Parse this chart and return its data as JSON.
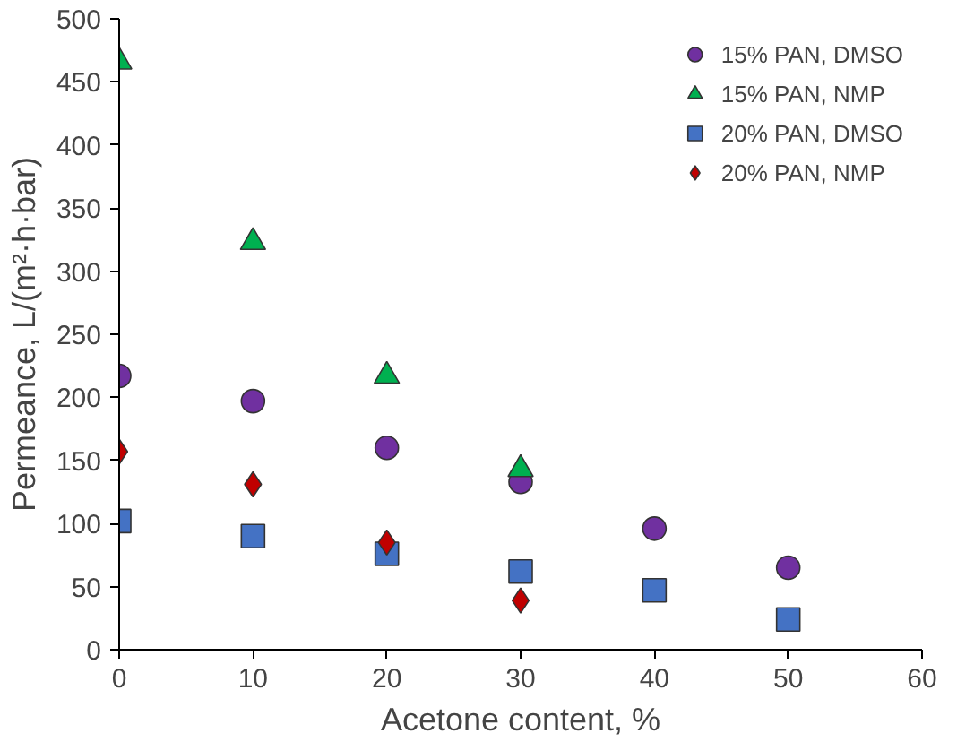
{
  "chart_data": {
    "type": "scatter",
    "xlabel": "Acetone content, %",
    "ylabel": "Permeance, L/(m²·h·bar)",
    "xlim": [
      0,
      60
    ],
    "xticks": [
      0,
      10,
      20,
      30,
      40,
      50,
      60
    ],
    "ylim": [
      0,
      500
    ],
    "yticks": [
      0,
      50,
      100,
      150,
      200,
      250,
      300,
      350,
      400,
      450,
      500
    ],
    "grid": false,
    "legend": "top right",
    "series": [
      {
        "name": "15% PAN, DMSO",
        "color": "#7030a0",
        "marker": "circle",
        "x": [
          0,
          10,
          20,
          30,
          40,
          50
        ],
        "values": [
          217,
          197,
          160,
          133,
          96,
          65
        ]
      },
      {
        "name": "15% PAN, NMP",
        "color": "#00b050",
        "marker": "triangle",
        "x": [
          0,
          10,
          20,
          30
        ],
        "values": [
          466,
          323,
          217,
          143
        ]
      },
      {
        "name": "20% PAN, DMSO",
        "color": "#4472c4",
        "marker": "square",
        "x": [
          0,
          10,
          20,
          30,
          40,
          50
        ],
        "values": [
          102,
          90,
          76,
          62,
          47,
          24
        ]
      },
      {
        "name": "20% PAN, NMP",
        "color": "#c00000",
        "marker": "diamond",
        "x": [
          0,
          10,
          20,
          30
        ],
        "values": [
          157,
          131,
          85,
          39
        ]
      }
    ]
  }
}
